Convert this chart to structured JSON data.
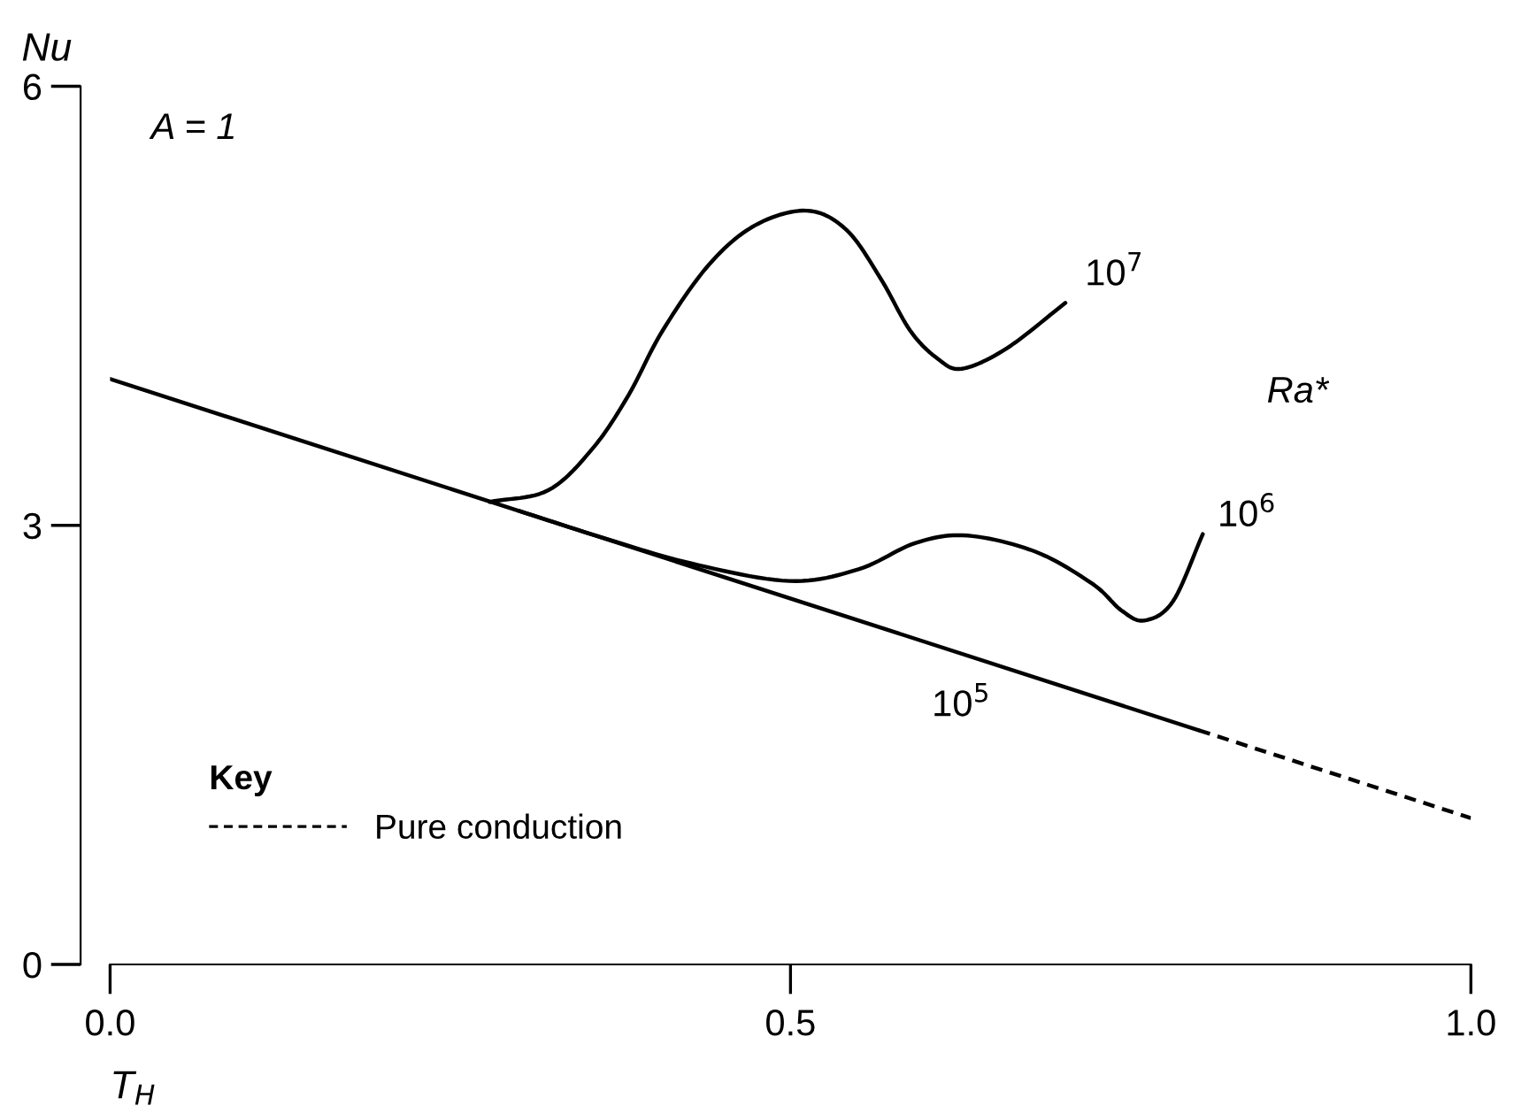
{
  "chart_data": {
    "type": "line",
    "xlabel": "T$_{H}$",
    "ylabel": "Nu",
    "xlim": [
      0,
      1
    ],
    "ylim": [
      0,
      6
    ],
    "xticks": [
      {
        "value": 0,
        "label": "0.0"
      },
      0.5,
      {
        "value": 1,
        "label": "1.0"
      }
    ],
    "yticks": [
      0,
      3,
      6
    ],
    "grid": false,
    "legend": "bottom left",
    "legend_title": "Key",
    "marker": "none",
    "series": [
      {
        "name": "10$^{5}$",
        "color": "#000000",
        "line_style": "solid",
        "x": [
          0,
          0.8
        ],
        "values": [
          4.0,
          1.6
        ]
      },
      {
        "name": "Pure conduction",
        "color": "#000000",
        "line_style": "dashed",
        "x": [
          0.8,
          1.0
        ],
        "values": [
          1.6,
          1.0
        ]
      },
      {
        "name": "10$^{7}$",
        "color": "#000000",
        "line_style": "solid",
        "x": [
          0.279,
          0.322,
          0.355,
          0.381,
          0.406,
          0.44,
          0.474,
          0.512,
          0.541,
          0.566,
          0.588,
          0.608,
          0.626,
          0.659,
          0.702
        ],
        "values": [
          3.16,
          3.24,
          3.53,
          3.89,
          4.33,
          4.78,
          5.05,
          5.15,
          5.02,
          4.69,
          4.33,
          4.14,
          4.07,
          4.21,
          4.52
        ]
      },
      {
        "name": "10$^{6}$",
        "color": "#000000",
        "line_style": "solid",
        "x": [
          0.3,
          0.364,
          0.427,
          0.499,
          0.55,
          0.592,
          0.63,
          0.68,
          0.722,
          0.743,
          0.76,
          0.781,
          0.803
        ],
        "values": [
          3.1,
          2.91,
          2.74,
          2.62,
          2.7,
          2.88,
          2.93,
          2.82,
          2.6,
          2.42,
          2.35,
          2.48,
          2.94
        ]
      }
    ],
    "annotations": [
      "A = 1",
      "Ra*"
    ]
  }
}
